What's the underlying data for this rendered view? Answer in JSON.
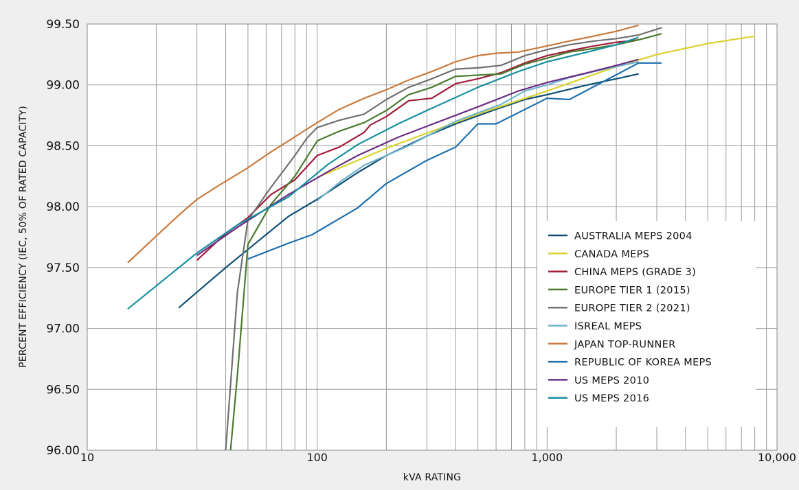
{
  "chart_data": {
    "type": "line",
    "xscale": "log",
    "xlim": [
      10,
      10000
    ],
    "ylim": [
      96.0,
      99.5
    ],
    "xlabel": "kVA RATING",
    "ylabel": "PERCENT EFFICIENCY (IEC, 50% OF RATED CAPACITY)",
    "grid": true,
    "legend_position": "lower-right",
    "x_ticks": [
      {
        "value": 10,
        "label": "10"
      },
      {
        "value": 100,
        "label": "100"
      },
      {
        "value": 1000,
        "label": "1,000"
      },
      {
        "value": 10000,
        "label": "10,000"
      }
    ],
    "y_ticks": [
      {
        "value": 96.0,
        "label": "96.00"
      },
      {
        "value": 96.5,
        "label": "96.50"
      },
      {
        "value": 97.0,
        "label": "97.00"
      },
      {
        "value": 97.5,
        "label": "97.50"
      },
      {
        "value": 98.0,
        "label": "98.00"
      },
      {
        "value": 98.5,
        "label": "98.50"
      },
      {
        "value": 99.0,
        "label": "99.00"
      },
      {
        "value": 99.5,
        "label": "99.50"
      }
    ],
    "series": [
      {
        "name": "AUSTRALIA MEPS 2004",
        "color": "#0e4e75",
        "points": [
          [
            25,
            97.17
          ],
          [
            40,
            97.5
          ],
          [
            75,
            97.92
          ],
          [
            100,
            98.06
          ],
          [
            150,
            98.28
          ],
          [
            200,
            98.42
          ],
          [
            300,
            98.58
          ],
          [
            400,
            98.68
          ],
          [
            600,
            98.8
          ],
          [
            800,
            98.88
          ],
          [
            1000,
            98.92
          ],
          [
            1500,
            99.0
          ],
          [
            2000,
            99.05
          ],
          [
            2500,
            99.09
          ]
        ]
      },
      {
        "name": "CANADA MEPS",
        "color": "#d9d22c",
        "points": [
          [
            100,
            98.24
          ],
          [
            200,
            98.48
          ],
          [
            500,
            98.76
          ],
          [
            1000,
            98.95
          ],
          [
            2000,
            99.15
          ],
          [
            3000,
            99.25
          ],
          [
            5000,
            99.34
          ],
          [
            8000,
            99.4
          ]
        ]
      },
      {
        "name": "CHINA MEPS (GRADE 3)",
        "color": "#a11c3a",
        "points": [
          [
            30,
            97.56
          ],
          [
            40,
            97.78
          ],
          [
            50,
            97.91
          ],
          [
            63,
            98.1
          ],
          [
            80,
            98.22
          ],
          [
            100,
            98.42
          ],
          [
            125,
            98.49
          ],
          [
            160,
            98.61
          ],
          [
            170,
            98.67
          ],
          [
            200,
            98.74
          ],
          [
            250,
            98.87
          ],
          [
            315,
            98.89
          ],
          [
            400,
            99.01
          ],
          [
            500,
            99.05
          ],
          [
            630,
            99.1
          ],
          [
            800,
            99.18
          ],
          [
            1000,
            99.24
          ],
          [
            1250,
            99.28
          ],
          [
            1600,
            99.32
          ],
          [
            2000,
            99.35
          ],
          [
            2500,
            99.37
          ]
        ]
      },
      {
        "name": "EUROPE TIER 1 (2015)",
        "color": "#4a7a2e",
        "points": [
          [
            42,
            96.0
          ],
          [
            45,
            96.62
          ],
          [
            50,
            97.69
          ],
          [
            63,
            98.02
          ],
          [
            80,
            98.25
          ],
          [
            100,
            98.54
          ],
          [
            125,
            98.62
          ],
          [
            160,
            98.69
          ],
          [
            200,
            98.79
          ],
          [
            250,
            98.92
          ],
          [
            315,
            98.98
          ],
          [
            400,
            99.07
          ],
          [
            500,
            99.08
          ],
          [
            630,
            99.09
          ],
          [
            800,
            99.17
          ],
          [
            1000,
            99.22
          ],
          [
            1250,
            99.27
          ],
          [
            1600,
            99.3
          ],
          [
            2000,
            99.33
          ],
          [
            2500,
            99.37
          ],
          [
            3150,
            99.42
          ]
        ]
      },
      {
        "name": "EUROPE TIER 2 (2021)",
        "color": "#707070",
        "points": [
          [
            40,
            96.0
          ],
          [
            45,
            97.3
          ],
          [
            50,
            97.89
          ],
          [
            63,
            98.16
          ],
          [
            80,
            98.42
          ],
          [
            90,
            98.56
          ],
          [
            100,
            98.65
          ],
          [
            125,
            98.71
          ],
          [
            160,
            98.76
          ],
          [
            200,
            98.88
          ],
          [
            250,
            98.98
          ],
          [
            315,
            99.05
          ],
          [
            400,
            99.13
          ],
          [
            500,
            99.14
          ],
          [
            630,
            99.16
          ],
          [
            800,
            99.24
          ],
          [
            1000,
            99.29
          ],
          [
            1250,
            99.33
          ],
          [
            1600,
            99.36
          ],
          [
            2000,
            99.38
          ],
          [
            2500,
            99.41
          ],
          [
            3150,
            99.47
          ]
        ]
      },
      {
        "name": "ISREAL MEPS",
        "color": "#6fb3cc",
        "points": [
          [
            100,
            98.05
          ],
          [
            125,
            98.2
          ],
          [
            160,
            98.34
          ],
          [
            200,
            98.42
          ],
          [
            250,
            98.5
          ],
          [
            315,
            98.6
          ],
          [
            400,
            98.7
          ],
          [
            500,
            98.77
          ],
          [
            630,
            98.84
          ],
          [
            800,
            98.95
          ],
          [
            1000,
            99.0
          ],
          [
            1250,
            99.06
          ],
          [
            1600,
            99.11
          ],
          [
            2000,
            99.15
          ],
          [
            2500,
            99.19
          ]
        ]
      },
      {
        "name": "JAPAN TOP-RUNNER",
        "color": "#c97a3c",
        "points": [
          [
            15,
            97.54
          ],
          [
            20,
            97.76
          ],
          [
            25,
            97.93
          ],
          [
            30,
            98.06
          ],
          [
            37,
            98.17
          ],
          [
            50,
            98.32
          ],
          [
            63,
            98.45
          ],
          [
            75,
            98.54
          ],
          [
            100,
            98.69
          ],
          [
            125,
            98.8
          ],
          [
            160,
            98.89
          ],
          [
            200,
            98.96
          ],
          [
            250,
            99.04
          ],
          [
            315,
            99.11
          ],
          [
            400,
            99.19
          ],
          [
            500,
            99.24
          ],
          [
            600,
            99.26
          ],
          [
            750,
            99.27
          ],
          [
            1000,
            99.32
          ],
          [
            1250,
            99.36
          ],
          [
            1500,
            99.39
          ],
          [
            2000,
            99.44
          ],
          [
            2500,
            99.49
          ]
        ]
      },
      {
        "name": "REPUBLIC OF KOREA MEPS",
        "color": "#1d6fae",
        "points": [
          [
            50,
            97.57
          ],
          [
            75,
            97.7
          ],
          [
            95,
            97.77
          ],
          [
            150,
            97.99
          ],
          [
            200,
            98.19
          ],
          [
            300,
            98.38
          ],
          [
            400,
            98.49
          ],
          [
            500,
            98.68
          ],
          [
            600,
            98.68
          ],
          [
            1000,
            98.89
          ],
          [
            1250,
            98.88
          ],
          [
            2500,
            99.18
          ],
          [
            3150,
            99.18
          ]
        ]
      },
      {
        "name": "US MEPS 2010",
        "color": "#6b2d83",
        "points": [
          [
            30,
            97.6
          ],
          [
            45,
            97.83
          ],
          [
            75,
            98.1
          ],
          [
            112,
            98.29
          ],
          [
            150,
            98.42
          ],
          [
            225,
            98.57
          ],
          [
            300,
            98.66
          ],
          [
            500,
            98.82
          ],
          [
            750,
            98.95
          ],
          [
            1000,
            99.02
          ],
          [
            1500,
            99.1
          ],
          [
            2000,
            99.16
          ],
          [
            2500,
            99.21
          ]
        ]
      },
      {
        "name": "US MEPS 2016",
        "color": "#168f9f",
        "points": [
          [
            15,
            97.16
          ],
          [
            30,
            97.62
          ],
          [
            45,
            97.85
          ],
          [
            75,
            98.08
          ],
          [
            112,
            98.35
          ],
          [
            150,
            98.51
          ],
          [
            225,
            98.68
          ],
          [
            300,
            98.79
          ],
          [
            500,
            98.98
          ],
          [
            750,
            99.11
          ],
          [
            1000,
            99.19
          ],
          [
            1500,
            99.27
          ],
          [
            2000,
            99.33
          ],
          [
            2500,
            99.39
          ]
        ]
      }
    ]
  }
}
